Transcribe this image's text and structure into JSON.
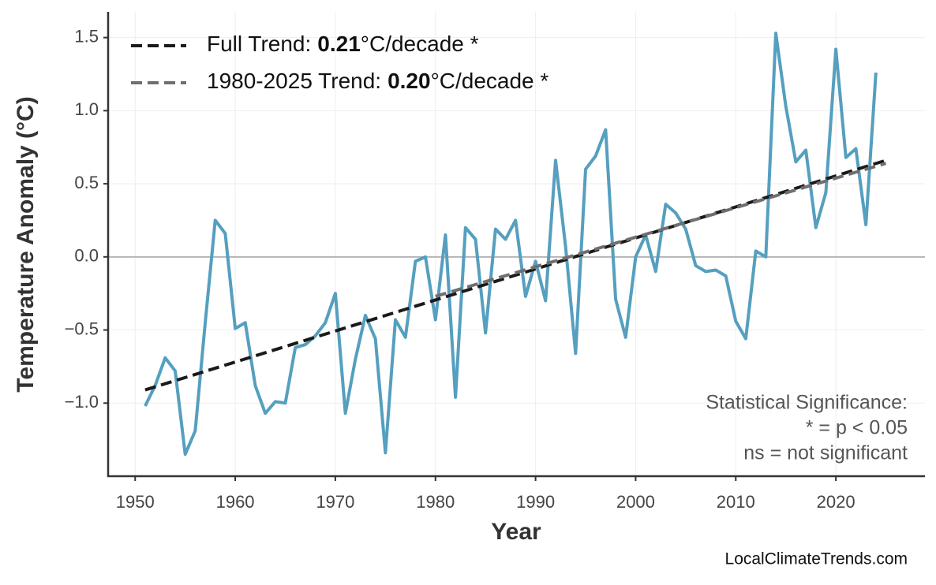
{
  "chart_data": {
    "type": "line",
    "x_label": "Year",
    "y_label": "Temperature Anomaly (°C)",
    "x": [
      1951,
      1952,
      1953,
      1954,
      1955,
      1956,
      1957,
      1958,
      1959,
      1960,
      1961,
      1962,
      1963,
      1964,
      1965,
      1966,
      1967,
      1968,
      1969,
      1970,
      1971,
      1972,
      1973,
      1974,
      1975,
      1976,
      1977,
      1978,
      1979,
      1980,
      1981,
      1982,
      1983,
      1984,
      1985,
      1986,
      1987,
      1988,
      1989,
      1990,
      1991,
      1992,
      1993,
      1994,
      1995,
      1996,
      1997,
      1998,
      1999,
      2000,
      2001,
      2002,
      2003,
      2004,
      2005,
      2006,
      2007,
      2008,
      2009,
      2010,
      2011,
      2012,
      2013,
      2014,
      2015,
      2016,
      2017,
      2018,
      2019,
      2020,
      2021,
      2022,
      2023,
      2024
    ],
    "series": [
      {
        "color": "#559fbf",
        "values": [
          -1.02,
          -0.88,
          -0.69,
          -0.78,
          -1.35,
          -1.19,
          -0.45,
          0.25,
          0.16,
          -0.49,
          -0.45,
          -0.88,
          -1.07,
          -0.99,
          -1.0,
          -0.62,
          -0.6,
          -0.54,
          -0.45,
          -0.25,
          -1.07,
          -0.7,
          -0.4,
          -0.56,
          -1.34,
          -0.43,
          -0.55,
          -0.03,
          0.0,
          -0.43,
          0.15,
          -0.96,
          0.2,
          0.12,
          -0.52,
          0.19,
          0.12,
          0.25,
          -0.27,
          -0.03,
          -0.3,
          0.66,
          0.07,
          -0.66,
          0.6,
          0.69,
          0.87,
          -0.29,
          -0.55,
          0.0,
          0.15,
          -0.1,
          0.36,
          0.3,
          0.19,
          -0.06,
          -0.1,
          -0.09,
          -0.13,
          -0.44,
          -0.56,
          0.04,
          0.0,
          1.53,
          1.03,
          0.65,
          0.73,
          0.2,
          0.44,
          1.42,
          0.68,
          0.74,
          0.22,
          1.26
        ]
      }
    ],
    "trend_lines": [
      {
        "label": "Full Trend:",
        "slope": "0.21",
        "unit": "°C/decade *",
        "color": "#1a1a1a",
        "x": [
          1951,
          2025
        ],
        "values": [
          -0.91,
          0.66
        ]
      },
      {
        "label": "1980-2025 Trend:",
        "slope": "0.20",
        "unit": "°C/decade *",
        "color": "#6f6f6f",
        "x": [
          1980,
          2025
        ],
        "values": [
          -0.27,
          0.64
        ]
      }
    ],
    "reference_line": 0,
    "xlim": [
      1947.3,
      2028.9
    ],
    "ylim": [
      -1.5,
      1.676
    ],
    "xticks": [
      1950,
      1960,
      1970,
      1980,
      1990,
      2000,
      2010,
      2020
    ],
    "yticks": [
      1.5,
      {
        "value": 1.0,
        "label": "1.0"
      },
      0.5,
      {
        "value": 0.0,
        "label": "0.0"
      },
      {
        "value": -0.5,
        "label": "−0.5"
      },
      {
        "value": -1.0,
        "label": "−1.0"
      }
    ],
    "grid": true,
    "annotation": [
      "Statistical Significance:",
      "* = p < 0.05",
      "ns = not significant"
    ],
    "source": "LocalClimateTrends.com"
  }
}
